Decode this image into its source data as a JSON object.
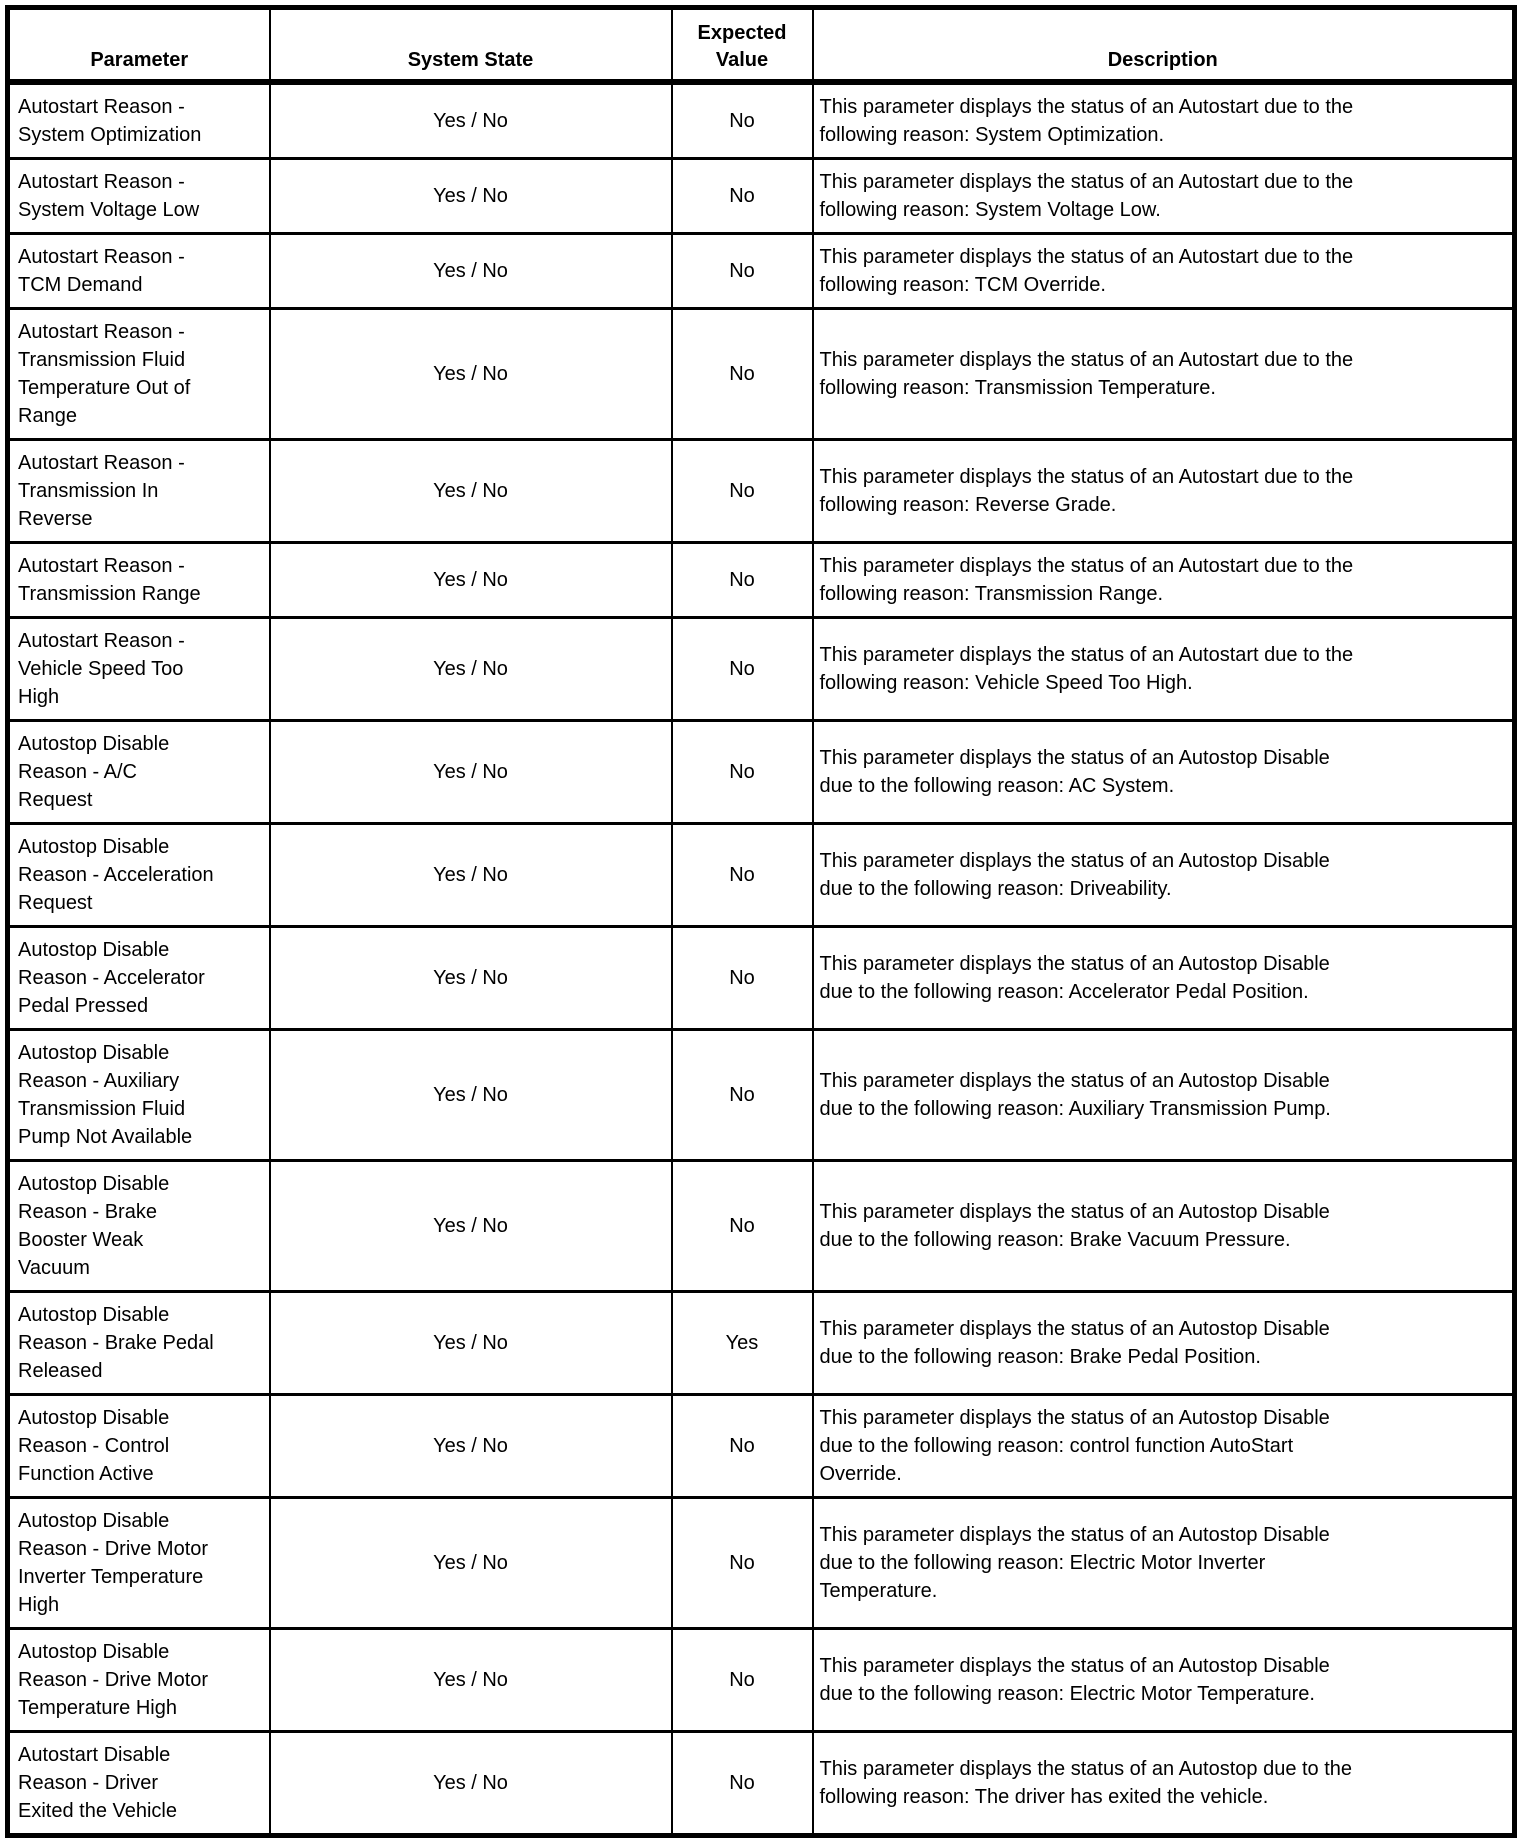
{
  "table": {
    "columns": [
      {
        "id": "parameter",
        "label": "Parameter"
      },
      {
        "id": "system_state",
        "label": "System State"
      },
      {
        "id": "expected_value",
        "label": "Expected Value"
      },
      {
        "id": "description",
        "label": "Description"
      }
    ],
    "rows": [
      {
        "parameter": "Autostart Reason -\nSystem Optimization",
        "system_state": "Yes / No",
        "expected_value": "No",
        "description": "This parameter displays the status of an Autostart due to the\nfollowing reason: System Optimization."
      },
      {
        "parameter": "Autostart Reason -\nSystem Voltage Low",
        "system_state": "Yes / No",
        "expected_value": "No",
        "description": "This parameter displays the status of an Autostart due to the\nfollowing reason: System Voltage Low."
      },
      {
        "parameter": "Autostart Reason -\nTCM Demand",
        "system_state": "Yes / No",
        "expected_value": "No",
        "description": "This parameter displays the status of an Autostart due to the\nfollowing reason: TCM Override."
      },
      {
        "parameter": "Autostart Reason -\nTransmission Fluid\nTemperature Out of\nRange",
        "system_state": "Yes / No",
        "expected_value": "No",
        "description": "This parameter displays the status of an Autostart due to the\nfollowing reason: Transmission Temperature."
      },
      {
        "parameter": "Autostart Reason -\nTransmission In\nReverse",
        "system_state": "Yes / No",
        "expected_value": "No",
        "description": "This parameter displays the status of an Autostart due to the\nfollowing reason: Reverse Grade."
      },
      {
        "parameter": "Autostart Reason -\nTransmission Range",
        "system_state": "Yes / No",
        "expected_value": "No",
        "description": "This parameter displays the status of an Autostart due to the\nfollowing reason: Transmission Range."
      },
      {
        "parameter": "Autostart Reason -\nVehicle Speed Too\nHigh",
        "system_state": "Yes / No",
        "expected_value": "No",
        "description": "This parameter displays the status of an Autostart due to the\nfollowing reason: Vehicle Speed Too High."
      },
      {
        "parameter": "Autostop Disable\nReason - A/C\nRequest",
        "system_state": "Yes / No",
        "expected_value": "No",
        "description": "This parameter displays the status of an Autostop Disable\ndue to the following reason: AC System."
      },
      {
        "parameter": "Autostop Disable\nReason - Acceleration\nRequest",
        "system_state": "Yes / No",
        "expected_value": "No",
        "description": "This parameter displays the status of an Autostop Disable\ndue to the following reason: Driveability."
      },
      {
        "parameter": "Autostop Disable\nReason - Accelerator\nPedal Pressed",
        "system_state": "Yes / No",
        "expected_value": "No",
        "description": "This parameter displays the status of an Autostop Disable\ndue to the following reason: Accelerator Pedal Position."
      },
      {
        "parameter": "Autostop Disable\nReason - Auxiliary\nTransmission Fluid\nPump Not Available",
        "system_state": "Yes / No",
        "expected_value": "No",
        "description": "This parameter displays the status of an Autostop Disable\ndue to the following reason: Auxiliary Transmission Pump."
      },
      {
        "parameter": "Autostop Disable\nReason - Brake\nBooster Weak\nVacuum",
        "system_state": "Yes / No",
        "expected_value": "No",
        "description": "This parameter displays the status of an Autostop Disable\ndue to the following reason: Brake Vacuum Pressure."
      },
      {
        "parameter": "Autostop Disable\nReason - Brake Pedal\nReleased",
        "system_state": "Yes / No",
        "expected_value": "Yes",
        "description": "This parameter displays the status of an Autostop Disable\ndue to the following reason: Brake Pedal Position."
      },
      {
        "parameter": "Autostop Disable\nReason - Control\nFunction Active",
        "system_state": "Yes / No",
        "expected_value": "No",
        "description": "This parameter displays the status of an Autostop Disable\ndue to the following reason: control function AutoStart\nOverride."
      },
      {
        "parameter": "Autostop Disable\nReason - Drive Motor\nInverter Temperature\nHigh",
        "system_state": "Yes / No",
        "expected_value": "No",
        "description": "This parameter displays the status of an Autostop Disable\ndue to the following reason: Electric Motor Inverter\nTemperature."
      },
      {
        "parameter": "Autostop Disable\nReason - Drive Motor\nTemperature High",
        "system_state": "Yes / No",
        "expected_value": "No",
        "description": "This parameter displays the status of an Autostop Disable\ndue to the following reason: Electric Motor Temperature."
      },
      {
        "parameter": "Autostart Disable\nReason - Driver\nExited the Vehicle",
        "system_state": "Yes / No",
        "expected_value": "No",
        "description": "This parameter displays the status of an Autostop due to the\nfollowing reason: The driver has exited the vehicle."
      }
    ]
  }
}
